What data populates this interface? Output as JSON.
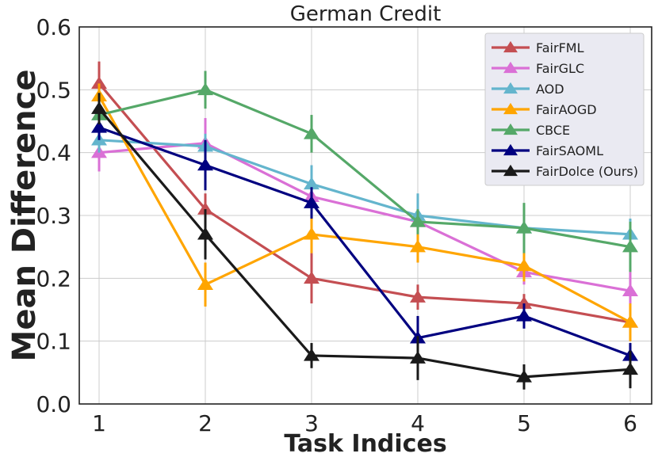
{
  "chart_data": {
    "type": "line",
    "title": "German Credit",
    "xlabel": "Task Indices",
    "ylabel": "Mean Difference",
    "x": [
      1,
      2,
      3,
      4,
      5,
      6
    ],
    "xticks": [
      "1",
      "2",
      "3",
      "4",
      "5",
      "6"
    ],
    "ylim": [
      0,
      0.6
    ],
    "yticks": [
      "0.0",
      "0.1",
      "0.2",
      "0.3",
      "0.4",
      "0.5",
      "0.6"
    ],
    "grid": true,
    "legend_position": "top-right",
    "series": [
      {
        "name": "FairFML",
        "color": "#c44e52",
        "values": [
          0.51,
          0.31,
          0.2,
          0.17,
          0.16,
          0.13
        ],
        "err": [
          0.035,
          0.025,
          0.04,
          0.02,
          0.015,
          0.02
        ]
      },
      {
        "name": "FairGLC",
        "color": "#da70d6",
        "values": [
          0.4,
          0.415,
          0.33,
          0.29,
          0.21,
          0.18
        ],
        "err": [
          0.03,
          0.04,
          0.025,
          0.03,
          0.02,
          0.03
        ]
      },
      {
        "name": "AOD",
        "color": "#64b5cd",
        "values": [
          0.42,
          0.41,
          0.35,
          0.3,
          0.28,
          0.27
        ],
        "err": [
          0.02,
          0.02,
          0.03,
          0.035,
          0.02,
          0.025
        ]
      },
      {
        "name": "FairAOGD",
        "color": "#ffa500",
        "values": [
          0.49,
          0.19,
          0.27,
          0.25,
          0.22,
          0.13
        ],
        "err": [
          0.02,
          0.035,
          0.03,
          0.025,
          0.025,
          0.03
        ]
      },
      {
        "name": "CBCE",
        "color": "#55a868",
        "values": [
          0.46,
          0.5,
          0.43,
          0.29,
          0.28,
          0.25
        ],
        "err": [
          0.02,
          0.03,
          0.03,
          0.02,
          0.04,
          0.04
        ]
      },
      {
        "name": "FairSAOML",
        "color": "#000080",
        "values": [
          0.44,
          0.38,
          0.32,
          0.105,
          0.14,
          0.077
        ],
        "err": [
          0.02,
          0.04,
          0.025,
          0.035,
          0.02,
          0.02
        ]
      },
      {
        "name": "FairDolce (Ours)",
        "color": "#1a1a1a",
        "values": [
          0.47,
          0.27,
          0.077,
          0.073,
          0.043,
          0.055
        ],
        "err": [
          0.025,
          0.04,
          0.02,
          0.035,
          0.02,
          0.03
        ]
      }
    ]
  }
}
